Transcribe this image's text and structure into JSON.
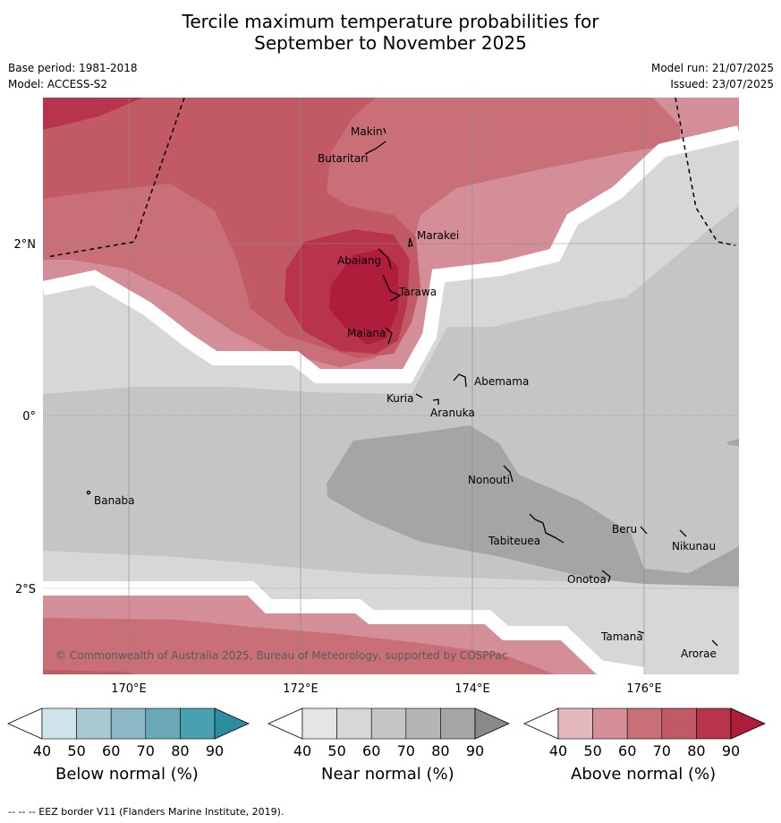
{
  "title": {
    "line1": "Tercile maximum temperature probabilities for",
    "line2": "September to November 2025"
  },
  "meta": {
    "base_period": "Base period: 1981-2018",
    "model": "Model: ACCESS-S2",
    "model_run": "Model run: 21/07/2025",
    "issued": "Issued: 23/07/2025"
  },
  "map": {
    "copyright": "© Commonwealth of Australia 2025, Bureau of Meteorology, supported by COSPPac",
    "lat_labels": [
      "2°N",
      "0°",
      "2°S"
    ],
    "lon_labels": [
      "170°E",
      "172°E",
      "174°E",
      "176°E"
    ],
    "places": [
      "Makin",
      "Butaritari",
      "Marakei",
      "Abaiang",
      "Tarawa",
      "Maiana",
      "Abemama",
      "Kuria",
      "Aranuka",
      "Nonouti",
      "Banaba",
      "Beru",
      "Nikunau",
      "Tabiteuea",
      "Onotoa",
      "Tamana",
      "Arorae"
    ]
  },
  "legend": {
    "ticks": [
      "40",
      "50",
      "60",
      "70",
      "80",
      "90"
    ],
    "below": {
      "label": "Below normal (%)",
      "colors": [
        "#cfe3ea",
        "#a8c9d2",
        "#8bb8c4",
        "#6aaab8",
        "#48a1b1",
        "#2b8ea0"
      ]
    },
    "near": {
      "label": "Near normal (%)",
      "colors": [
        "#e5e5e5",
        "#d7d7d7",
        "#c5c5c5",
        "#b5b5b5",
        "#a5a5a5",
        "#8a8a8a"
      ]
    },
    "above": {
      "label": "Above normal (%)",
      "colors": [
        "#e2b8be",
        "#d48e97",
        "#c96f78",
        "#c25a66",
        "#b8344c",
        "#b01c3c"
      ]
    }
  },
  "footer": {
    "eez_note": "--  --  -- EEZ border V11 (Flanders Marine Institute, 2019)."
  }
}
